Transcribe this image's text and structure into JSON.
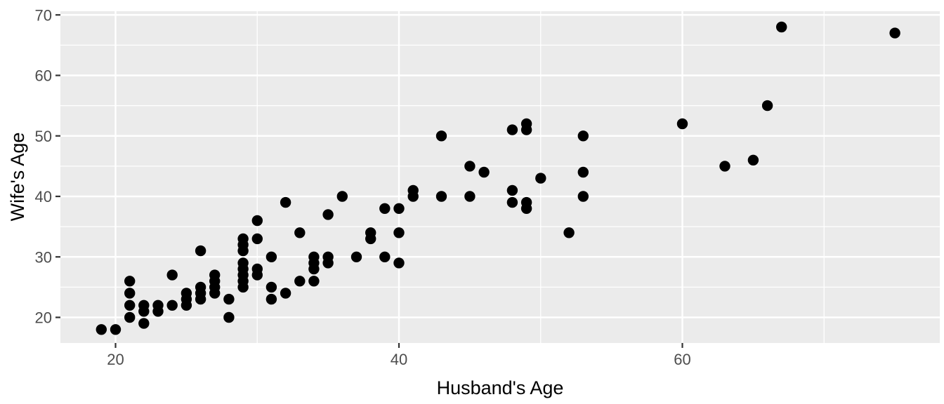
{
  "chart_data": {
    "type": "scatter",
    "title": "",
    "xlabel": "Husband's Age",
    "ylabel": "Wife's Age",
    "x_ticks": [
      20,
      40,
      60
    ],
    "x_minor": [
      30,
      50,
      70
    ],
    "y_ticks": [
      20,
      30,
      40,
      50,
      60,
      70
    ],
    "y_minor": [
      25,
      35,
      45,
      55,
      65
    ],
    "xlim": [
      16.1,
      78.2
    ],
    "ylim": [
      15.8,
      70.6
    ],
    "grid": "on",
    "legend": "none",
    "colors": {
      "panel": "#EBEBEB",
      "grid": "#FFFFFF",
      "point": "#000000",
      "tick_text": "#4D4D4D",
      "tick_mark": "#333333",
      "axis_title": "#000000"
    },
    "points": [
      [
        19,
        18
      ],
      [
        20,
        18
      ],
      [
        21,
        20
      ],
      [
        21,
        22
      ],
      [
        21,
        24
      ],
      [
        21,
        26
      ],
      [
        22,
        19
      ],
      [
        22,
        21
      ],
      [
        22,
        22
      ],
      [
        23,
        21
      ],
      [
        23,
        22
      ],
      [
        24,
        22
      ],
      [
        24,
        27
      ],
      [
        25,
        22
      ],
      [
        25,
        23
      ],
      [
        25,
        24
      ],
      [
        26,
        23
      ],
      [
        26,
        24
      ],
      [
        26,
        25
      ],
      [
        26,
        31
      ],
      [
        27,
        24
      ],
      [
        27,
        25
      ],
      [
        27,
        26
      ],
      [
        27,
        27
      ],
      [
        28,
        20
      ],
      [
        28,
        23
      ],
      [
        29,
        25
      ],
      [
        29,
        26
      ],
      [
        29,
        27
      ],
      [
        29,
        28
      ],
      [
        29,
        29
      ],
      [
        29,
        31
      ],
      [
        29,
        32
      ],
      [
        29,
        33
      ],
      [
        30,
        27
      ],
      [
        30,
        28
      ],
      [
        30,
        33
      ],
      [
        30,
        36
      ],
      [
        31,
        23
      ],
      [
        31,
        25
      ],
      [
        31,
        30
      ],
      [
        32,
        24
      ],
      [
        32,
        39
      ],
      [
        33,
        26
      ],
      [
        33,
        34
      ],
      [
        34,
        26
      ],
      [
        34,
        28
      ],
      [
        34,
        29
      ],
      [
        34,
        30
      ],
      [
        35,
        29
      ],
      [
        35,
        30
      ],
      [
        35,
        37
      ],
      [
        36,
        40
      ],
      [
        37,
        30
      ],
      [
        38,
        33
      ],
      [
        38,
        34
      ],
      [
        39,
        30
      ],
      [
        39,
        38
      ],
      [
        40,
        29
      ],
      [
        40,
        34
      ],
      [
        40,
        38
      ],
      [
        41,
        40
      ],
      [
        41,
        41
      ],
      [
        43,
        40
      ],
      [
        43,
        50
      ],
      [
        45,
        40
      ],
      [
        45,
        45
      ],
      [
        46,
        44
      ],
      [
        48,
        39
      ],
      [
        48,
        41
      ],
      [
        48,
        51
      ],
      [
        49,
        38
      ],
      [
        49,
        39
      ],
      [
        49,
        51
      ],
      [
        49,
        52
      ],
      [
        50,
        43
      ],
      [
        52,
        34
      ],
      [
        53,
        40
      ],
      [
        53,
        44
      ],
      [
        53,
        50
      ],
      [
        60,
        52
      ],
      [
        63,
        45
      ],
      [
        65,
        46
      ],
      [
        66,
        55
      ],
      [
        67,
        68
      ],
      [
        75,
        67
      ]
    ]
  }
}
